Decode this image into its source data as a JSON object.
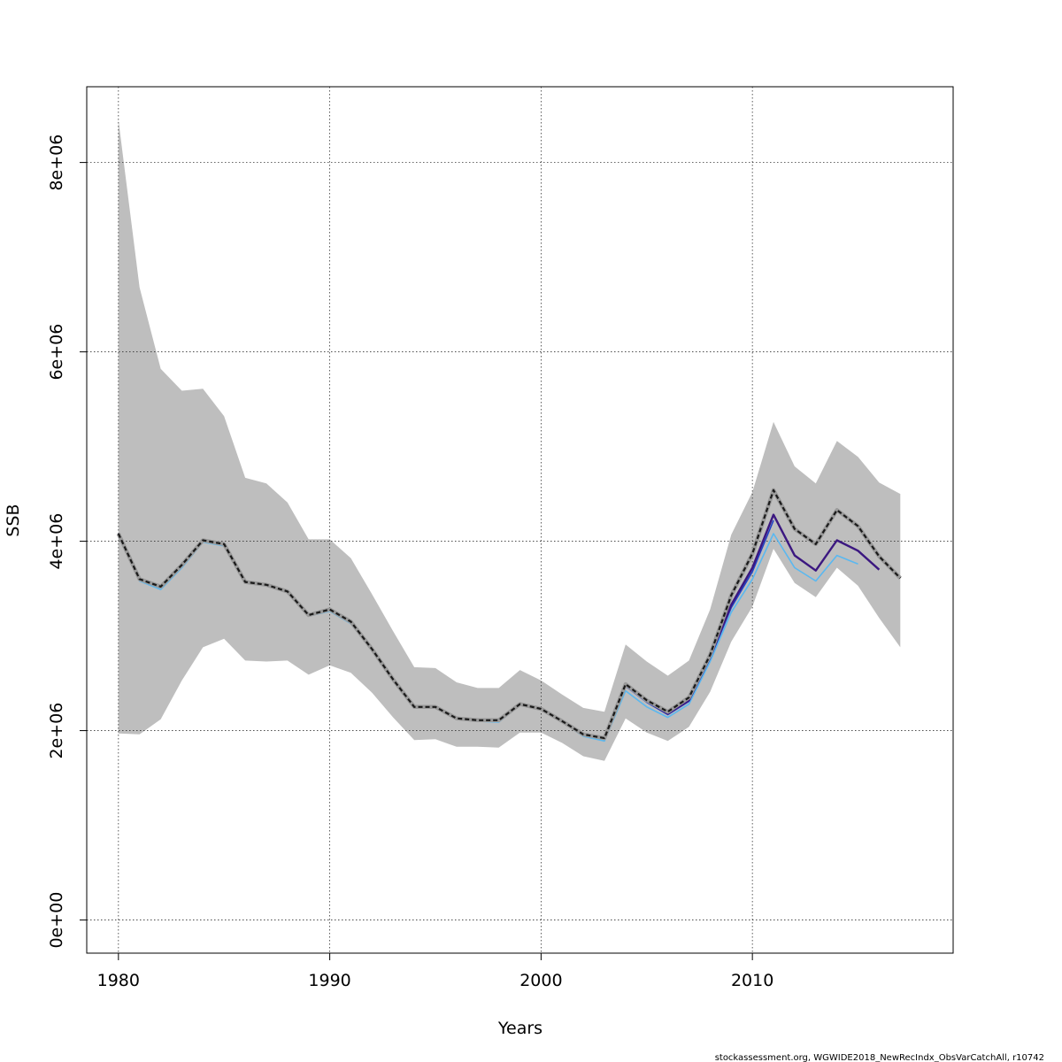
{
  "chart_data": {
    "type": "line",
    "title": "",
    "xlabel": "Years",
    "ylabel": "SSB",
    "xlim": [
      1978.5,
      2019.5
    ],
    "ylim": [
      -350000,
      8800000
    ],
    "grid": true,
    "x_ticks": [
      1980,
      1990,
      2000,
      2010
    ],
    "x_tick_labels": [
      "1980",
      "1990",
      "2000",
      "2010"
    ],
    "y_ticks": [
      0,
      2000000,
      4000000,
      6000000,
      8000000
    ],
    "y_tick_labels": [
      "0e+00",
      "2e+06",
      "4e+06",
      "6e+06",
      "8e+06"
    ],
    "footer": "stockassessment.org, WGWIDE2018_NewRecIndx_ObsVarCatchAll, r10742",
    "band": {
      "name": "confidence interval",
      "color": "#bebebe",
      "x": [
        1980,
        1981,
        1982,
        1983,
        1984,
        1985,
        1986,
        1987,
        1988,
        1989,
        1990,
        1991,
        1992,
        1993,
        1994,
        1995,
        1996,
        1997,
        1998,
        1999,
        2000,
        2001,
        2002,
        2003,
        2004,
        2005,
        2006,
        2007,
        2008,
        2009,
        2010,
        2011,
        2012,
        2013,
        2014,
        2015,
        2016,
        2017
      ],
      "upper": [
        8450000,
        6680000,
        5820000,
        5590000,
        5610000,
        5320000,
        4670000,
        4610000,
        4410000,
        4020000,
        4020000,
        3820000,
        3440000,
        3050000,
        2670000,
        2660000,
        2510000,
        2450000,
        2450000,
        2640000,
        2530000,
        2380000,
        2240000,
        2200000,
        2910000,
        2730000,
        2580000,
        2740000,
        3280000,
        4070000,
        4520000,
        5260000,
        4790000,
        4610000,
        5060000,
        4890000,
        4620000,
        4500000
      ],
      "lower": [
        1970000,
        1960000,
        2120000,
        2530000,
        2880000,
        2970000,
        2740000,
        2730000,
        2740000,
        2590000,
        2690000,
        2610000,
        2400000,
        2140000,
        1900000,
        1910000,
        1830000,
        1830000,
        1820000,
        1980000,
        1980000,
        1870000,
        1730000,
        1680000,
        2130000,
        1980000,
        1890000,
        2040000,
        2410000,
        2940000,
        3310000,
        3920000,
        3560000,
        3410000,
        3720000,
        3530000,
        3190000,
        2880000
      ]
    },
    "series": [
      {
        "name": "estimate (black dashed)",
        "color": "#1a1a1a",
        "dashed": true,
        "x": [
          1980,
          1981,
          1982,
          1983,
          1984,
          1985,
          1986,
          1987,
          1988,
          1989,
          1990,
          1991,
          1992,
          1993,
          1994,
          1995,
          1996,
          1997,
          1998,
          1999,
          2000,
          2001,
          2002,
          2003,
          2004,
          2005,
          2006,
          2007,
          2008,
          2009,
          2010,
          2011,
          2012,
          2013,
          2014,
          2015,
          2016,
          2017
        ],
        "values": [
          4080000,
          3600000,
          3520000,
          3750000,
          4010000,
          3970000,
          3570000,
          3540000,
          3470000,
          3220000,
          3280000,
          3150000,
          2860000,
          2540000,
          2250000,
          2250000,
          2130000,
          2110000,
          2110000,
          2280000,
          2230000,
          2100000,
          1960000,
          1920000,
          2490000,
          2320000,
          2200000,
          2350000,
          2800000,
          3430000,
          3870000,
          4540000,
          4130000,
          3970000,
          4330000,
          4160000,
          3840000,
          3610000
        ]
      },
      {
        "name": "retrospective run (dark purple)",
        "color": "#3b1780",
        "dashed": false,
        "x": [
          1980,
          1981,
          1982,
          1983,
          1984,
          1985,
          1986,
          1987,
          1988,
          1989,
          1990,
          1991,
          1992,
          1993,
          1994,
          1995,
          1996,
          1997,
          1998,
          1999,
          2000,
          2001,
          2002,
          2003,
          2004,
          2005,
          2006,
          2007,
          2008,
          2009,
          2010,
          2011,
          2012,
          2013,
          2014,
          2015,
          2016
        ],
        "values": [
          4080000,
          3600000,
          3520000,
          3750000,
          4010000,
          3970000,
          3570000,
          3540000,
          3470000,
          3220000,
          3280000,
          3150000,
          2860000,
          2540000,
          2250000,
          2250000,
          2130000,
          2110000,
          2110000,
          2280000,
          2230000,
          2100000,
          1960000,
          1920000,
          2480000,
          2310000,
          2180000,
          2320000,
          2780000,
          3330000,
          3720000,
          4280000,
          3850000,
          3690000,
          4010000,
          3900000,
          3700000
        ]
      },
      {
        "name": "retrospective run (blue)",
        "color": "#1f3fc4",
        "dashed": false,
        "x": [
          1980,
          1981,
          1982,
          1983,
          1984,
          1985,
          1986,
          1987,
          1988,
          1989,
          1990,
          1991,
          1992,
          1993,
          1994,
          1995,
          1996,
          1997,
          1998,
          1999,
          2000,
          2001,
          2002,
          2003,
          2004,
          2005,
          2006,
          2007,
          2008,
          2009,
          2010,
          2011
        ],
        "values": [
          4080000,
          3600000,
          3510000,
          3740000,
          4000000,
          3960000,
          3570000,
          3540000,
          3470000,
          3220000,
          3270000,
          3140000,
          2850000,
          2540000,
          2250000,
          2250000,
          2130000,
          2110000,
          2110000,
          2280000,
          2230000,
          2100000,
          1960000,
          1910000,
          2470000,
          2300000,
          2170000,
          2310000,
          2760000,
          3300000,
          3680000,
          4220000
        ]
      },
      {
        "name": "retrospective run (light blue)",
        "color": "#5ab8f0",
        "dashed": false,
        "x": [
          1980,
          1981,
          1982,
          1983,
          1984,
          1985,
          1986,
          1987,
          1988,
          1989,
          1990,
          1991,
          1992,
          1993,
          1994,
          1995,
          1996,
          1997,
          1998,
          1999,
          2000,
          2001,
          2002,
          2003,
          2004,
          2005,
          2006,
          2007,
          2008,
          2009,
          2010,
          2011,
          2012,
          2013,
          2014,
          2015
        ],
        "values": [
          4050000,
          3580000,
          3490000,
          3720000,
          3990000,
          3950000,
          3560000,
          3530000,
          3460000,
          3210000,
          3260000,
          3130000,
          2850000,
          2530000,
          2240000,
          2240000,
          2120000,
          2100000,
          2090000,
          2270000,
          2220000,
          2090000,
          1940000,
          1890000,
          2420000,
          2250000,
          2140000,
          2280000,
          2730000,
          3250000,
          3600000,
          4080000,
          3720000,
          3580000,
          3850000,
          3760000
        ]
      }
    ]
  }
}
